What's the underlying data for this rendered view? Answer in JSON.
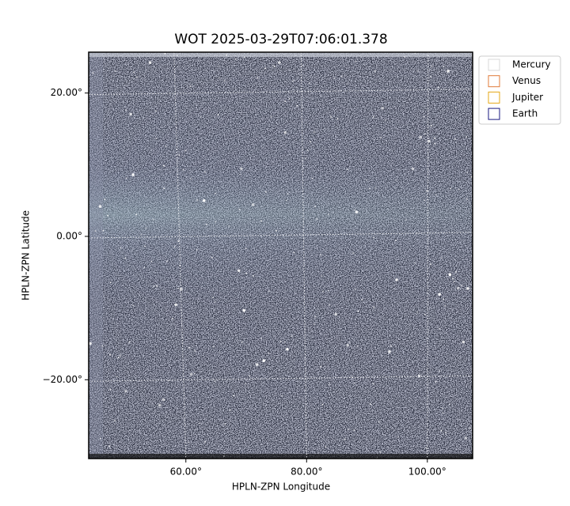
{
  "chart_data": {
    "type": "image",
    "title": "WOT 2025-03-29T07:06:01.378",
    "xlabel": "HPLN-ZPN Longitude",
    "ylabel": "HPLN-ZPN Latitude",
    "xlim": [
      43.9,
      107.5
    ],
    "ylim": [
      -31.0,
      25.7
    ],
    "xticks": [
      {
        "value": 60,
        "label": "60.00°"
      },
      {
        "value": 80,
        "label": "80.00°"
      },
      {
        "value": 100,
        "label": "100.00°"
      }
    ],
    "yticks": [
      {
        "value": -20,
        "label": "−20.00°"
      },
      {
        "value": 0,
        "label": "0.00°"
      },
      {
        "value": 20,
        "label": "20.00°"
      }
    ],
    "grid": true,
    "legend_position": "upper right",
    "series": [
      {
        "name": "Mercury",
        "color": "#d9d9d9"
      },
      {
        "name": "Venus",
        "color": "#e07b39"
      },
      {
        "name": "Jupiter",
        "color": "#e6a817"
      },
      {
        "name": "Earth",
        "color": "#1a1a80"
      }
    ]
  }
}
